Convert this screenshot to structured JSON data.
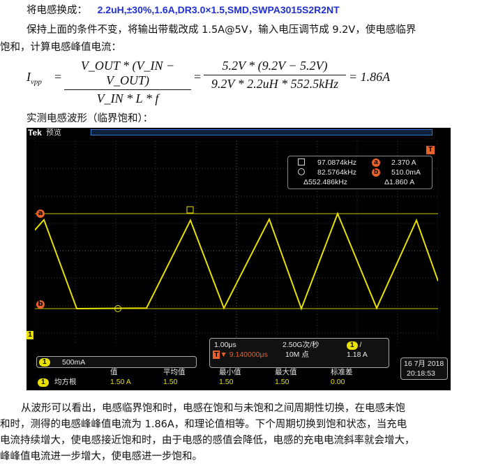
{
  "header": {
    "label": "将电感换成：",
    "spec": "2.2uH,±30%,1.6A,DR3.0×1.5,SMD,SWPA3015S2R2NT"
  },
  "intro": {
    "line1": "保持上面的条件不变，将输出带载改成 1.5A@5V，输入电压调节成 9.2V，使电感临界",
    "line2": "饱和，计算电感峰值电流："
  },
  "formula": {
    "lhs": "I",
    "lhs_sub": "vpp",
    "num1": "V_OUT * (V_IN − V_OUT)",
    "den1": "V_IN * L * f",
    "num2": "5.2V * (9.2V − 5.2V)",
    "den2": "9.2V * 2.2uH * 552.5kHz",
    "result": "= 1.86A"
  },
  "caption": "实测电感波形（临界饱和）：",
  "scope": {
    "brand": "Tek",
    "mode": "预览",
    "trigger_marker": "T",
    "cursor_a_label": "a",
    "cursor_b_label": "b",
    "channel_marker": "1",
    "measurements": {
      "row1_freq": "97.0874kHz",
      "row1_val": "2.370 A",
      "row2_freq": "82.5764kHz",
      "row2_val": "510.0mA",
      "row3_freq": "Δ552.486kHz",
      "row3_val": "Δ1.860 A",
      "badge_a": "a",
      "badge_b": "b"
    },
    "channel_scale": "500mA",
    "channel_num": "1",
    "timebase": "1.00μs",
    "sample_rate": "2.50G次/秒",
    "trigger_pos": "▼ 9.140000μs",
    "record_length": "10M 点",
    "trigger_ch": "1",
    "trigger_slope": "/",
    "trigger_level": "1.18 A",
    "date": "16 7月 2018",
    "time": "20:18:53",
    "stats": {
      "ch": "1",
      "row_label": "均方根",
      "headers": [
        "值",
        "平均值",
        "最小值",
        "最大值",
        "标准差"
      ],
      "values": [
        "1.50 A",
        "1.50",
        "1.50",
        "1.50",
        "0.00"
      ]
    },
    "colors": {
      "trace": "#e8e000",
      "cursor": "#e8622a",
      "grid": "#3a3a3a"
    },
    "waveform_peaks": [
      2.25,
      2.24,
      2.26,
      2.37,
      2.24
    ],
    "waveform_valleys": [
      0.51,
      0.52,
      0.52,
      0.51,
      0.52
    ]
  },
  "paragraph": {
    "line1": "从波形可以看出，电感临界饱和时，电感在饱和与未饱和之间周期性切换，在电感未饱",
    "line2": "和时，测得的电感峰峰值电流为 1.86A，和理论值相等。下个周期切换到饱和状态，当充电",
    "line3": "电流持续增大，使电感接近饱和时，由于电感的感值会降低，电感的充电电流斜率就会增大，",
    "line4": "峰峰值电流进一步增大，使电感进一步饱和。"
  }
}
